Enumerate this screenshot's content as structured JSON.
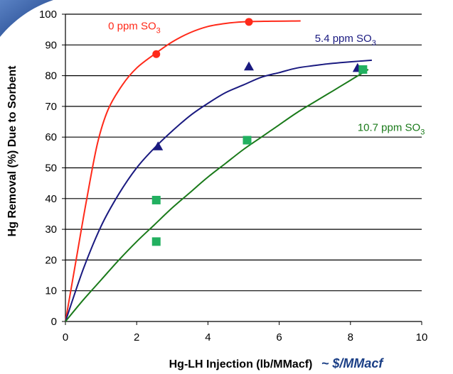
{
  "chart_data": {
    "type": "scatter",
    "title": "",
    "xlabel": "Hg-LH Injection (lb/MMacf)",
    "xlabel_note": "~ $/MMacf",
    "ylabel": "Hg Removal (%) Due to Sorbent",
    "xlim": [
      0,
      10
    ],
    "ylim": [
      0,
      100
    ],
    "x_ticks": [
      "0",
      "2",
      "4",
      "6",
      "8",
      "10"
    ],
    "y_ticks": [
      "0",
      "10",
      "20",
      "30",
      "40",
      "50",
      "60",
      "70",
      "80",
      "90",
      "100"
    ],
    "grid": "horizontal",
    "legend": "none",
    "series": [
      {
        "name": "0 ppm SO",
        "subscript": "3",
        "color": "#ff2a1a",
        "marker": "circle",
        "points": [
          {
            "x": 2.55,
            "y": 87
          },
          {
            "x": 5.15,
            "y": 97.5
          }
        ],
        "fit": [
          [
            0,
            0
          ],
          [
            0.3,
            20
          ],
          [
            0.6,
            40
          ],
          [
            0.9,
            58
          ],
          [
            1.2,
            69
          ],
          [
            1.6,
            77
          ],
          [
            2.0,
            82.5
          ],
          [
            2.5,
            87
          ],
          [
            3.0,
            91
          ],
          [
            3.5,
            94
          ],
          [
            4.0,
            96
          ],
          [
            4.5,
            97
          ],
          [
            5.0,
            97.5
          ],
          [
            5.6,
            97.7
          ],
          [
            6.6,
            97.8
          ]
        ],
        "label_xy": [
          1.2,
          95
        ]
      },
      {
        "name": "5.4 ppm SO",
        "subscript": "3",
        "color": "#1a1a80",
        "marker": "triangle",
        "points": [
          {
            "x": 2.6,
            "y": 57
          },
          {
            "x": 5.15,
            "y": 83
          },
          {
            "x": 8.2,
            "y": 82.5
          }
        ],
        "fit": [
          [
            0,
            0
          ],
          [
            0.5,
            17
          ],
          [
            1.0,
            31
          ],
          [
            1.5,
            41.5
          ],
          [
            2.0,
            50
          ],
          [
            2.5,
            56.5
          ],
          [
            3.0,
            62
          ],
          [
            3.5,
            67
          ],
          [
            4.0,
            71
          ],
          [
            4.5,
            74.5
          ],
          [
            5.0,
            77
          ],
          [
            5.5,
            79.5
          ],
          [
            6.0,
            81
          ],
          [
            6.5,
            82.5
          ],
          [
            7.0,
            83.3
          ],
          [
            7.5,
            84
          ],
          [
            8.0,
            84.5
          ],
          [
            8.6,
            85
          ]
        ],
        "label_xy": [
          7.0,
          91
        ]
      },
      {
        "name": "10.7 ppm SO",
        "subscript": "3",
        "color": "#1a7a1a",
        "marker": "square",
        "marker_color": "#22b060",
        "points": [
          {
            "x": 2.55,
            "y": 39.5
          },
          {
            "x": 2.55,
            "y": 26
          },
          {
            "x": 5.1,
            "y": 59
          },
          {
            "x": 8.35,
            "y": 82
          }
        ],
        "fit": [
          [
            0,
            0
          ],
          [
            0.5,
            7
          ],
          [
            1.0,
            13.5
          ],
          [
            1.5,
            20
          ],
          [
            2.0,
            26
          ],
          [
            2.5,
            31.5
          ],
          [
            3.0,
            37
          ],
          [
            3.5,
            42
          ],
          [
            4.0,
            47
          ],
          [
            4.5,
            51.5
          ],
          [
            5.0,
            56
          ],
          [
            5.5,
            60
          ],
          [
            6.0,
            64
          ],
          [
            6.5,
            68
          ],
          [
            7.0,
            71.5
          ],
          [
            7.5,
            75
          ],
          [
            8.0,
            78.5
          ],
          [
            8.5,
            82
          ]
        ],
        "label_xy": [
          8.2,
          62
        ]
      }
    ]
  }
}
